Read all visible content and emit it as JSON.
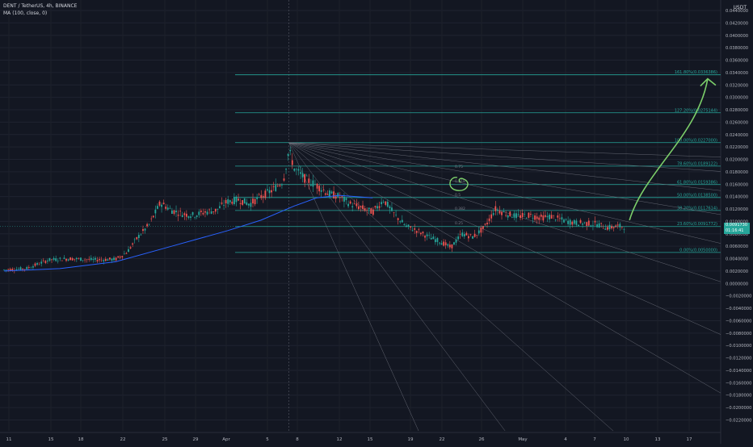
{
  "header": {
    "symbol_line": "DENT / TetherUS, 4h, BINANCE",
    "indicator_line": "MA (100, close, 0)"
  },
  "axis": {
    "currency": "USDT",
    "price_ticks": [
      "0.0440000",
      "0.0420000",
      "0.0400000",
      "0.0380000",
      "0.0360000",
      "0.0340000",
      "0.0320000",
      "0.0300000",
      "0.0280000",
      "0.0260000",
      "0.0240000",
      "0.0220000",
      "0.0200000",
      "0.0180000",
      "0.0160000",
      "0.0140000",
      "0.0120000",
      "0.0100000",
      "0.0080000",
      "0.0060000",
      "0.0040000",
      "0.0020000",
      "0.0000000",
      "−0.0020000",
      "−0.0040000",
      "−0.0060000",
      "−0.0080000",
      "−0.0100000",
      "−0.0120000",
      "−0.0140000",
      "−0.0160000",
      "−0.0180000",
      "−0.0200000",
      "−0.0220000"
    ],
    "date_ticks": [
      "11",
      "15",
      "18",
      "22",
      "25",
      "29",
      "Apr",
      "5",
      "8",
      "12",
      "15",
      "19",
      "22",
      "26",
      "May",
      "4",
      "7",
      "10",
      "13",
      "17"
    ],
    "last_price": "0.0091730",
    "countdown": "01:16:41"
  },
  "chart_data": {
    "type": "candlestick",
    "symbol": "DENT / TetherUS",
    "timeframe": "4h",
    "exchange": "BINANCE",
    "last_price": 0.009173,
    "ma": {
      "label": "MA (100, close, 0)",
      "color": "#2962ff"
    },
    "price_path": [
      {
        "d": 0,
        "p": 0.0022
      },
      {
        "d": 2,
        "p": 0.0024
      },
      {
        "d": 4,
        "p": 0.0038
      },
      {
        "d": 6,
        "p": 0.004
      },
      {
        "d": 8,
        "p": 0.0038
      },
      {
        "d": 10,
        "p": 0.0039
      },
      {
        "d": 11,
        "p": 0.005
      },
      {
        "d": 12,
        "p": 0.0075
      },
      {
        "d": 13,
        "p": 0.0095
      },
      {
        "d": 14,
        "p": 0.013
      },
      {
        "d": 15,
        "p": 0.0118
      },
      {
        "d": 16,
        "p": 0.0112
      },
      {
        "d": 17,
        "p": 0.011
      },
      {
        "d": 18,
        "p": 0.0115
      },
      {
        "d": 19,
        "p": 0.0118
      },
      {
        "d": 20,
        "p": 0.0132
      },
      {
        "d": 21,
        "p": 0.0135
      },
      {
        "d": 22,
        "p": 0.0128
      },
      {
        "d": 23,
        "p": 0.014
      },
      {
        "d": 24,
        "p": 0.015
      },
      {
        "d": 25,
        "p": 0.0165
      },
      {
        "d": 25.5,
        "p": 0.0215
      },
      {
        "d": 26,
        "p": 0.0185
      },
      {
        "d": 27,
        "p": 0.0168
      },
      {
        "d": 28,
        "p": 0.0158
      },
      {
        "d": 29,
        "p": 0.0145
      },
      {
        "d": 30,
        "p": 0.014
      },
      {
        "d": 31,
        "p": 0.0128
      },
      {
        "d": 32,
        "p": 0.0122
      },
      {
        "d": 33,
        "p": 0.0115
      },
      {
        "d": 34,
        "p": 0.0135
      },
      {
        "d": 35,
        "p": 0.011
      },
      {
        "d": 36,
        "p": 0.0092
      },
      {
        "d": 37,
        "p": 0.0085
      },
      {
        "d": 38,
        "p": 0.0075
      },
      {
        "d": 39,
        "p": 0.0068
      },
      {
        "d": 40,
        "p": 0.0058
      },
      {
        "d": 41,
        "p": 0.008
      },
      {
        "d": 42,
        "p": 0.0075
      },
      {
        "d": 43,
        "p": 0.009
      },
      {
        "d": 44,
        "p": 0.012
      },
      {
        "d": 45,
        "p": 0.0112
      },
      {
        "d": 46,
        "p": 0.0108
      },
      {
        "d": 47,
        "p": 0.011
      },
      {
        "d": 48,
        "p": 0.0106
      },
      {
        "d": 49,
        "p": 0.0108
      },
      {
        "d": 50,
        "p": 0.0102
      },
      {
        "d": 51,
        "p": 0.0098
      },
      {
        "d": 52,
        "p": 0.0097
      },
      {
        "d": 53,
        "p": 0.0096
      },
      {
        "d": 54,
        "p": 0.009
      },
      {
        "d": 55,
        "p": 0.00917
      }
    ],
    "ma_path": [
      {
        "d": 0,
        "p": 0.002
      },
      {
        "d": 5,
        "p": 0.0024
      },
      {
        "d": 10,
        "p": 0.0035
      },
      {
        "d": 15,
        "p": 0.006
      },
      {
        "d": 20,
        "p": 0.0085
      },
      {
        "d": 23,
        "p": 0.0102
      },
      {
        "d": 26,
        "p": 0.0125
      },
      {
        "d": 28,
        "p": 0.0138
      },
      {
        "d": 30,
        "p": 0.0142
      },
      {
        "d": 33,
        "p": 0.0138
      }
    ],
    "fib_levels": [
      {
        "ratio": "161.80%",
        "price": 0.0336386,
        "label": "161.80%(0.0336386)"
      },
      {
        "ratio": "127.20%",
        "price": 0.0275144,
        "label": "127.20%(0.0275144)"
      },
      {
        "ratio": "100.00%",
        "price": 0.0227,
        "label": "100.00%(0.0227000)"
      },
      {
        "ratio": "78.60%",
        "price": 0.0189122,
        "label": "78.60%(0.0189122)"
      },
      {
        "ratio": "61.80%",
        "price": 0.0159386,
        "label": "61.80%(0.0159386)"
      },
      {
        "ratio": "50.00%",
        "price": 0.01385,
        "label": "50.00%(0.0138500)"
      },
      {
        "ratio": "38.20%",
        "price": 0.0117614,
        "label": "38.20%(0.0117614)"
      },
      {
        "ratio": "23.60%",
        "price": 0.0091772,
        "label": "23.60%(0.0091772)"
      },
      {
        "ratio": "0.00%",
        "price": 0.005,
        "label": "0.00%(0.0050000)"
      }
    ],
    "fan_origin": {
      "d": 25.5,
      "p": 0.0227
    },
    "fan_slopes_per_day": [
      -6e-05,
      -0.00012,
      -0.0002,
      -0.0003,
      -0.00042,
      -0.00058,
      -0.0008,
      -0.0011,
      -0.0016,
      -0.0024,
      -0.004
    ],
    "fan_markers": [
      "0.75",
      "0.618",
      "0.5",
      "0.382",
      "0.25"
    ],
    "projection_arrow": {
      "from": {
        "d": 56,
        "p": 0.0102
      },
      "to": {
        "d": 63,
        "p": 0.033
      }
    },
    "colors": {
      "up": "#26a69a",
      "down": "#ef5350",
      "fib": "#26a69a",
      "fan": "#787b86",
      "arrow": "#7ccf6a"
    },
    "ylim": [
      -0.0226,
      0.0446
    ]
  }
}
